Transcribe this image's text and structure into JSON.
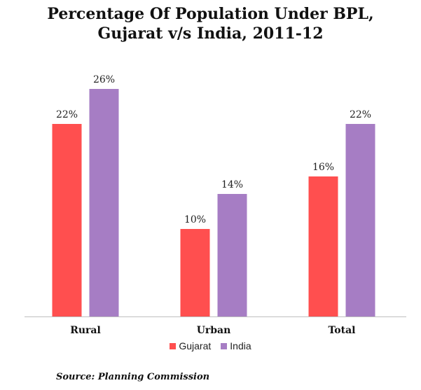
{
  "chart_data": {
    "type": "bar",
    "title": "Percentage Of Population Under BPL, Gujarat v/s India, 2011-12",
    "title_lines": [
      "Percentage Of Population Under BPL,",
      "Gujarat v/s India, 2011-12"
    ],
    "categories": [
      "Rural",
      "Urban",
      "Total"
    ],
    "series": [
      {
        "name": "Gujarat",
        "values": [
          22,
          10,
          16
        ],
        "labels": [
          "22%",
          "10%",
          "16%"
        ],
        "color": "#ff4f4f"
      },
      {
        "name": "India",
        "values": [
          26,
          14,
          22
        ],
        "labels": [
          "26%",
          "14%",
          "22%"
        ],
        "color": "#a67dc4"
      }
    ],
    "xlabel": "",
    "ylabel": "",
    "ylim": [
      0,
      26
    ],
    "grid": false,
    "legend": "bottom"
  },
  "source": "Source: Planning Commission"
}
